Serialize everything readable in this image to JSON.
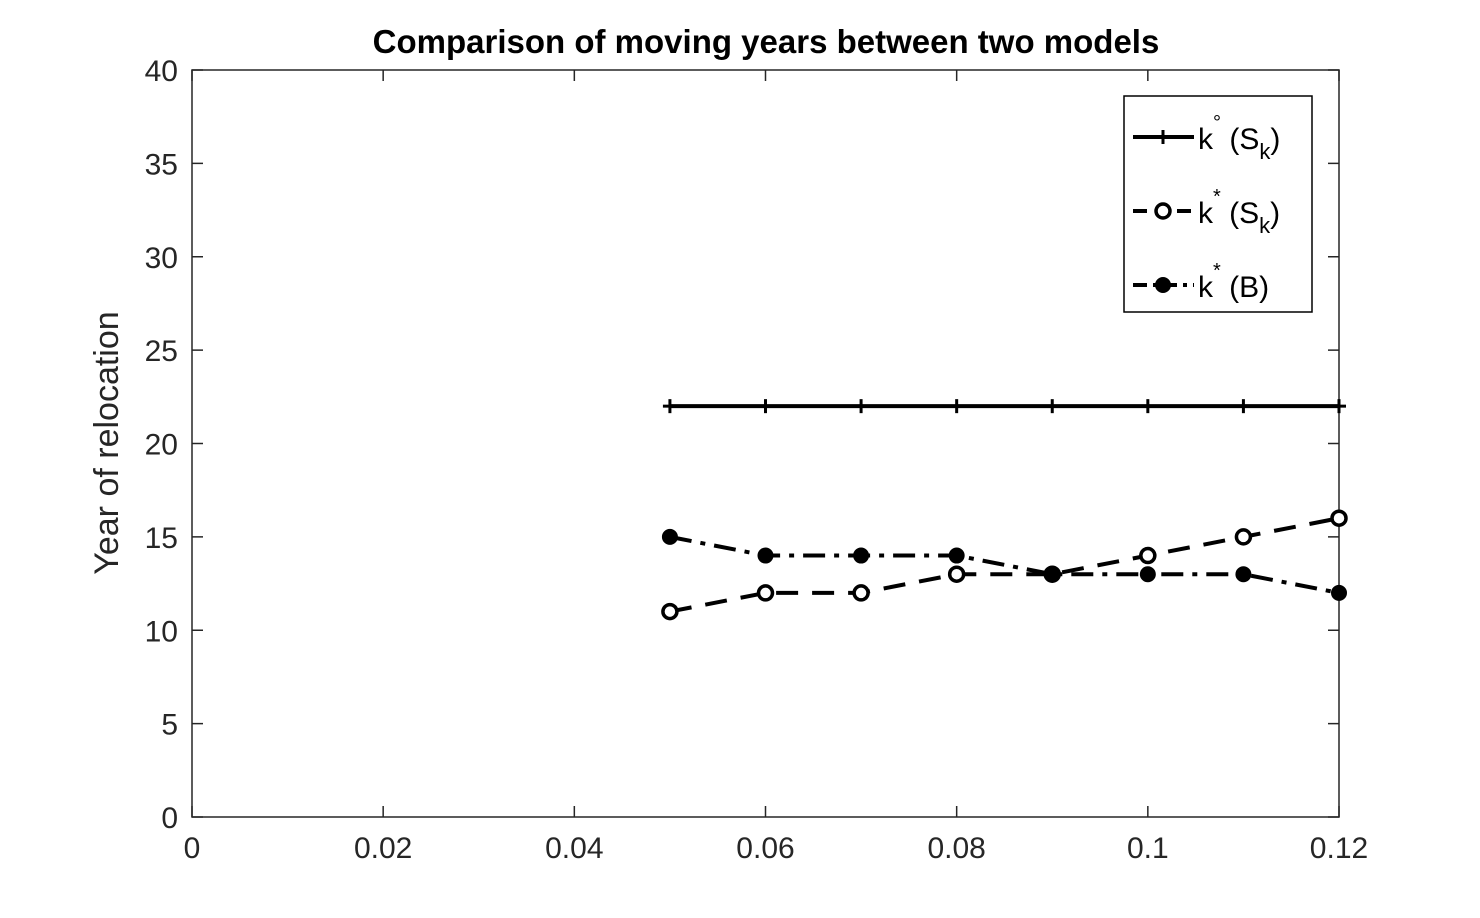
{
  "chart_data": {
    "type": "line",
    "title": "Comparison of moving years between two models",
    "xlabel": "",
    "ylabel": "Year of relocation",
    "xlim": [
      0,
      0.12
    ],
    "ylim": [
      0,
      40
    ],
    "xticks": [
      0,
      0.02,
      0.04,
      0.06,
      0.08,
      0.1,
      0.12
    ],
    "xtick_labels": [
      "0",
      "0.02",
      "0.04",
      "0.06",
      "0.08",
      "0.1",
      "0.12"
    ],
    "yticks": [
      0,
      5,
      10,
      15,
      20,
      25,
      30,
      35,
      40
    ],
    "ytick_labels": [
      "0",
      "5",
      "10",
      "15",
      "20",
      "25",
      "30",
      "35",
      "40"
    ],
    "grid": false,
    "legend_position": "top-right",
    "x": [
      0.05,
      0.06,
      0.07,
      0.08,
      0.09,
      0.1,
      0.11,
      0.12
    ],
    "series": [
      {
        "name": "k° (S_k)",
        "legend": {
          "base": "k",
          "sup": "°",
          "paren_open": " (S",
          "sub": "k",
          "paren_close": ")"
        },
        "values": [
          22,
          22,
          22,
          22,
          22,
          22,
          22,
          22
        ],
        "line_style": "solid",
        "marker": "plus",
        "color": "#000000"
      },
      {
        "name": "k* (S_k)",
        "legend": {
          "base": "k",
          "sup": "*",
          "paren_open": " (S",
          "sub": "k",
          "paren_close": ")"
        },
        "values": [
          11,
          12,
          12,
          13,
          13,
          14,
          15,
          16
        ],
        "line_style": "dashed",
        "marker": "open-circle",
        "color": "#000000"
      },
      {
        "name": "k* (B)",
        "legend": {
          "base": "k",
          "sup": "*",
          "paren_open": " (B)",
          "sub": "",
          "paren_close": ""
        },
        "values": [
          15,
          14,
          14,
          14,
          13,
          13,
          13,
          12
        ],
        "line_style": "dash-dot",
        "marker": "filled-circle",
        "color": "#000000"
      }
    ]
  }
}
